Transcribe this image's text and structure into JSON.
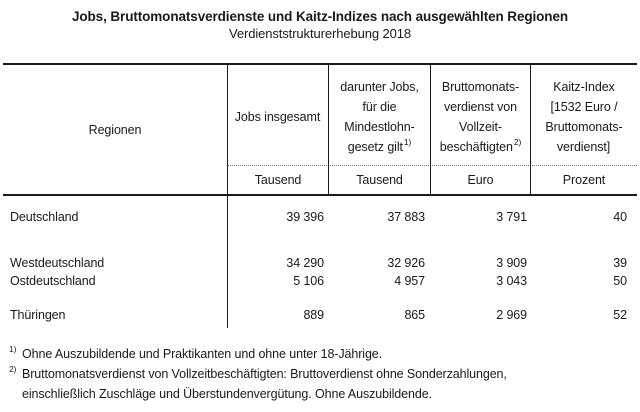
{
  "title": "Jobs, Bruttomonatsverdienste und Kaitz-Indizes nach ausgewählten Regionen",
  "subtitle": "Verdienststrukturerhebung 2018",
  "table": {
    "row_header": "Regionen",
    "columns": [
      {
        "label": "Jobs insgesamt",
        "sup": "",
        "unit": "Tausend"
      },
      {
        "label": "darunter Jobs,\nfür die\nMindestlohn-\ngesetz gilt",
        "sup": "1)",
        "unit": "Tausend"
      },
      {
        "label": "Bruttomonats-\nverdienst von\nVollzeit-\nbeschäftigten",
        "sup": "2)",
        "unit": "Euro"
      },
      {
        "label": "Kaitz-Index\n[1532 Euro /\nBruttomonats-\nverdienst]",
        "sup": "",
        "unit": "Prozent"
      }
    ],
    "rows": [
      {
        "region": "Deutschland",
        "jobs_total": "39 396",
        "jobs_minwage": "37 883",
        "gross_monthly": "3 791",
        "kaitz_index": "40"
      },
      {
        "region": "Westdeutschland",
        "jobs_total": "34 290",
        "jobs_minwage": "32 926",
        "gross_monthly": "3 909",
        "kaitz_index": "39"
      },
      {
        "region": "Ostdeutschland",
        "jobs_total": "5 106",
        "jobs_minwage": "4 957",
        "gross_monthly": "3 043",
        "kaitz_index": "50"
      },
      {
        "region": "Thüringen",
        "jobs_total": "889",
        "jobs_minwage": "865",
        "gross_monthly": "2 969",
        "kaitz_index": "52"
      }
    ]
  },
  "footnotes": [
    {
      "marker": "1)",
      "text": "Ohne Auszubildende und Praktikanten und ohne unter 18-Jährige."
    },
    {
      "marker": "2)",
      "text": "Bruttomonatsverdienst von Vollzeitbeschäftigten: Bruttoverdienst ohne Sonderzahlungen,\neinschließlich Zuschläge und Überstundenvergütung. Ohne Auszubildende."
    }
  ]
}
